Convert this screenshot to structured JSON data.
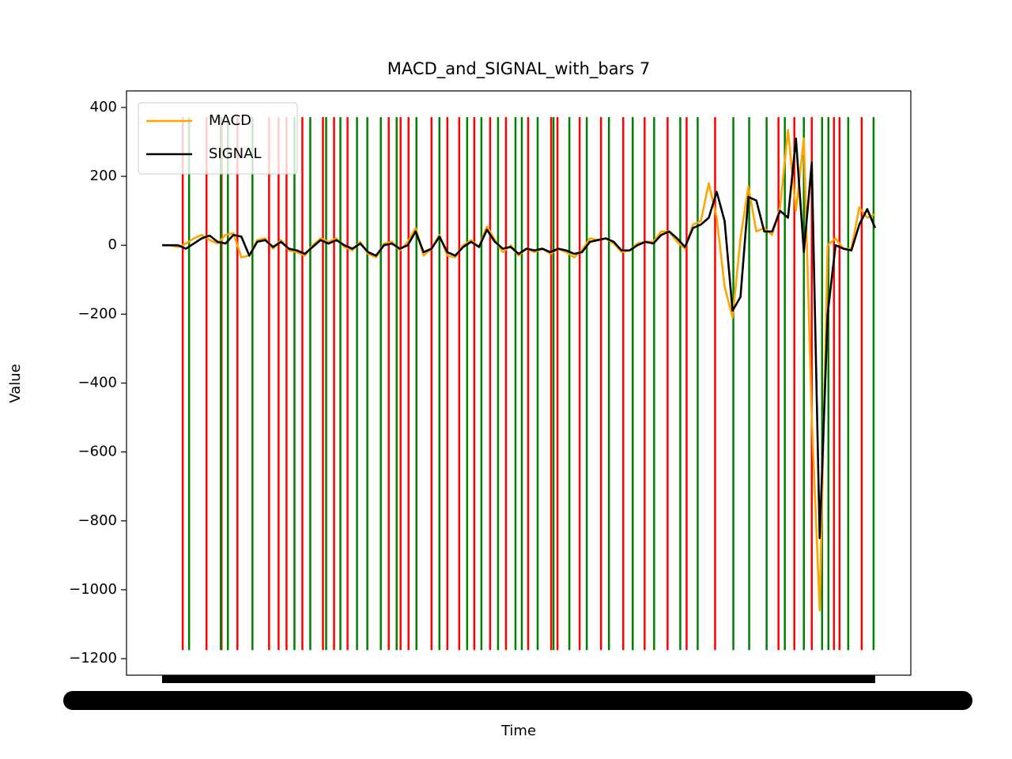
{
  "chart_data": {
    "type": "line",
    "title": "MACD_and_SIGNAL_with_bars 7",
    "xlabel": "Time",
    "ylabel": "Value",
    "legend": "upper left",
    "x": [
      0,
      1,
      2,
      3,
      4,
      5,
      6,
      7,
      8,
      9,
      10,
      11,
      12,
      13,
      14,
      15,
      16,
      17,
      18,
      19,
      20,
      21,
      22,
      23,
      24,
      25,
      26,
      27,
      28,
      29,
      30,
      31,
      32,
      33,
      34,
      35,
      36,
      37,
      38,
      39,
      40,
      41,
      42,
      43,
      44,
      45,
      46,
      47,
      48,
      49,
      50,
      51,
      52,
      53,
      54,
      55,
      56,
      57,
      58,
      59,
      60,
      61,
      62,
      63,
      64,
      65,
      66,
      67,
      68,
      69,
      70,
      71,
      72,
      73,
      74,
      75,
      76,
      77,
      78,
      79,
      80,
      81,
      82,
      83,
      84,
      85,
      86,
      87,
      88,
      89,
      90
    ],
    "series": [
      {
        "name": "MACD",
        "color": "#ffa500",
        "values": [
          0,
          0,
          -5,
          5,
          20,
          30,
          15,
          5,
          30,
          35,
          -35,
          -30,
          15,
          20,
          -10,
          15,
          -15,
          -20,
          -30,
          0,
          20,
          10,
          20,
          -5,
          -15,
          10,
          -25,
          -35,
          5,
          10,
          -15,
          10,
          50,
          -30,
          -10,
          30,
          -30,
          -35,
          0,
          15,
          -5,
          55,
          15,
          -20,
          0,
          -30,
          -10,
          -20,
          -10,
          -25,
          -10,
          -20,
          -35,
          -15,
          20,
          15,
          20,
          5,
          -20,
          -15,
          5,
          10,
          10,
          40,
          40,
          10,
          -10,
          60,
          70,
          180,
          80,
          -120,
          -210,
          20,
          170,
          40,
          50,
          30,
          110,
          335,
          100,
          310,
          -500,
          -1060,
          0,
          20,
          -10,
          -10,
          110,
          80,
          90
        ]
      },
      {
        "name": "SIGNAL",
        "color": "#000000",
        "values": [
          0,
          0,
          0,
          -10,
          5,
          20,
          28,
          10,
          5,
          30,
          25,
          -30,
          10,
          15,
          -5,
          10,
          -10,
          -15,
          -25,
          -5,
          15,
          5,
          15,
          0,
          -10,
          5,
          -20,
          -30,
          0,
          5,
          -10,
          0,
          40,
          -20,
          -10,
          25,
          -20,
          -30,
          -5,
          10,
          -5,
          45,
          10,
          -10,
          -5,
          -25,
          -10,
          -15,
          -10,
          -20,
          -10,
          -15,
          -25,
          -20,
          10,
          15,
          20,
          10,
          -15,
          -15,
          0,
          10,
          5,
          30,
          40,
          20,
          -5,
          50,
          60,
          80,
          155,
          70,
          -190,
          -150,
          140,
          130,
          40,
          40,
          100,
          80,
          310,
          -20,
          240,
          -850,
          -200,
          0,
          -10,
          -15,
          60,
          105,
          50
        ]
      }
    ],
    "bars": {
      "range": [
        -1175,
        372
      ],
      "red": {
        "color": "#ff0000",
        "x": [
          2.6,
          5.6,
          7.5,
          9.5,
          13.5,
          14.7,
          15.7,
          17.7,
          20.3,
          21.7,
          23.4,
          28.6,
          30.1,
          31.1,
          34.0,
          36.0,
          37.5,
          39.4,
          41.4,
          43.4,
          46.2,
          49.1,
          49.9,
          52.7,
          55.4,
          58.2,
          60.9,
          63.8,
          66.2,
          69.8,
          77.8,
          79.8,
          82.0,
          84.8,
          85.5,
          88.3
        ]
      },
      "green": {
        "color": "#008000",
        "x": [
          3.4,
          7.4,
          8.3,
          11.4,
          16.7,
          18.7,
          20.7,
          22.5,
          24.6,
          25.9,
          27.6,
          29.6,
          32.1,
          35.0,
          38.5,
          40.3,
          42.4,
          44.6,
          45.4,
          47.4,
          49.4,
          51.4,
          53.6,
          56.4,
          59.4,
          62.1,
          65.4,
          67.6,
          72.1,
          74.1,
          76.3,
          78.6,
          81.0,
          83.3,
          84.1,
          86.6,
          89.8
        ]
      }
    },
    "xlim": [
      -4.5,
      94.5
    ],
    "ylim": [
      -1248,
      448
    ],
    "yticks": [
      {
        "value": -1200,
        "label": "−1200"
      },
      {
        "value": -1000,
        "label": "−1000"
      },
      {
        "value": -800,
        "label": "−800"
      },
      {
        "value": -600,
        "label": "−600"
      },
      {
        "value": -400,
        "label": "−400"
      },
      {
        "value": -200,
        "label": "−200"
      },
      0,
      200,
      400
    ]
  }
}
